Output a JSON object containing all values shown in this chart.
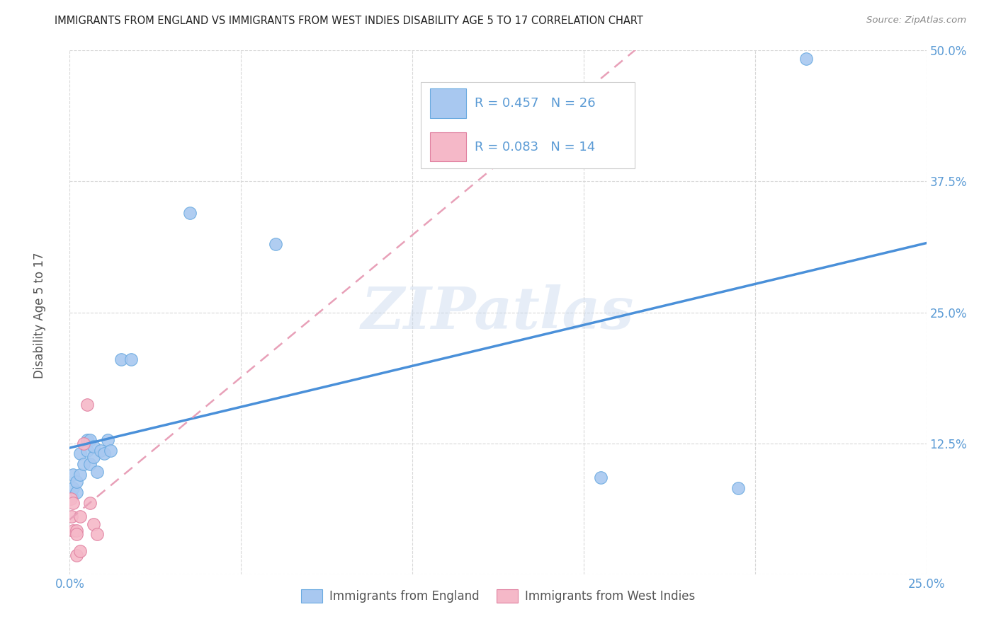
{
  "title": "IMMIGRANTS FROM ENGLAND VS IMMIGRANTS FROM WEST INDIES DISABILITY AGE 5 TO 17 CORRELATION CHART",
  "source": "Source: ZipAtlas.com",
  "ylabel": "Disability Age 5 to 17",
  "xlim": [
    0.0,
    0.25
  ],
  "ylim": [
    0.0,
    0.5
  ],
  "xticks": [
    0.0,
    0.05,
    0.1,
    0.15,
    0.2,
    0.25
  ],
  "yticks": [
    0.0,
    0.125,
    0.25,
    0.375,
    0.5
  ],
  "xtick_labels": [
    "0.0%",
    "",
    "",
    "",
    "",
    "25.0%"
  ],
  "ytick_labels": [
    "",
    "12.5%",
    "25.0%",
    "37.5%",
    "50.0%"
  ],
  "england_color": "#a8c8f0",
  "england_edge_color": "#6aaae0",
  "wi_color": "#f5b8c8",
  "wi_edge_color": "#e080a0",
  "england_line_color": "#4a90d9",
  "wi_line_color": "#e8a0b8",
  "england_R": 0.457,
  "england_N": 26,
  "wi_R": 0.083,
  "wi_N": 14,
  "england_scatter_x": [
    0.0005,
    0.001,
    0.001,
    0.002,
    0.002,
    0.003,
    0.003,
    0.004,
    0.005,
    0.005,
    0.006,
    0.006,
    0.007,
    0.007,
    0.008,
    0.009,
    0.01,
    0.011,
    0.012,
    0.015,
    0.018,
    0.035,
    0.06,
    0.155,
    0.195,
    0.215
  ],
  "england_scatter_y": [
    0.075,
    0.082,
    0.095,
    0.078,
    0.088,
    0.115,
    0.095,
    0.105,
    0.118,
    0.128,
    0.128,
    0.105,
    0.112,
    0.122,
    0.098,
    0.118,
    0.115,
    0.128,
    0.118,
    0.205,
    0.205,
    0.345,
    0.315,
    0.092,
    0.082,
    0.492
  ],
  "wi_scatter_x": [
    0.0003,
    0.0005,
    0.001,
    0.001,
    0.002,
    0.002,
    0.002,
    0.003,
    0.003,
    0.004,
    0.005,
    0.006,
    0.007,
    0.008
  ],
  "wi_scatter_y": [
    0.072,
    0.055,
    0.068,
    0.042,
    0.042,
    0.038,
    0.018,
    0.022,
    0.055,
    0.125,
    0.162,
    0.068,
    0.048,
    0.038
  ],
  "watermark_text": "ZIPatlas",
  "grid_color": "#d8d8d8",
  "title_color": "#222222",
  "tick_color": "#5b9bd5",
  "legend_text_color": "#5b9bd5",
  "source_color": "#888888",
  "ylabel_color": "#555555"
}
